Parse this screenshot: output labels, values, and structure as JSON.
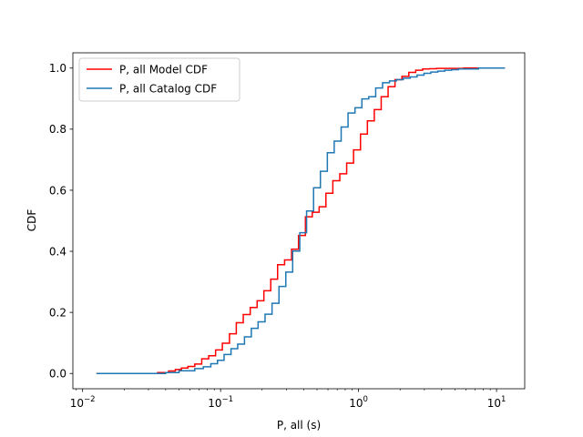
{
  "chart_data": {
    "type": "line",
    "step": true,
    "xlabel": "P, all (s)",
    "ylabel": "CDF",
    "xscale": "log",
    "xlim": [
      0.0085,
      16.0
    ],
    "ylim": [
      -0.05,
      1.05
    ],
    "grid": false,
    "legend_position": "top-left",
    "x_ticks": [
      {
        "value": 0.01,
        "base": "10",
        "exp": "−2"
      },
      {
        "value": 0.1,
        "base": "10",
        "exp": "−1"
      },
      {
        "value": 1,
        "base": "10",
        "exp": "0"
      },
      {
        "value": 10,
        "base": "10",
        "exp": "1"
      }
    ],
    "y_ticks": [
      {
        "value": 0.0,
        "label": "0.0"
      },
      {
        "value": 0.2,
        "label": "0.2"
      },
      {
        "value": 0.4,
        "label": "0.4"
      },
      {
        "value": 0.6,
        "label": "0.6"
      },
      {
        "value": 0.8,
        "label": "0.8"
      },
      {
        "value": 1.0,
        "label": "1.0"
      }
    ],
    "series": [
      {
        "name": "P, all Model CDF",
        "color": "#ff0000",
        "x": [
          0.0126,
          0.035,
          0.042,
          0.047,
          0.052,
          0.058,
          0.065,
          0.073,
          0.082,
          0.092,
          0.103,
          0.116,
          0.13,
          0.146,
          0.164,
          0.184,
          0.206,
          0.231,
          0.259,
          0.291,
          0.327,
          0.367,
          0.412,
          0.462,
          0.518,
          0.58,
          0.651,
          0.731,
          0.82,
          0.92,
          1.033,
          1.159,
          1.3,
          1.459,
          1.637,
          1.837,
          2.062,
          2.313,
          2.596,
          2.913,
          3.268,
          3.667,
          5.8,
          11.5
        ],
        "y": [
          0.0,
          0.003,
          0.008,
          0.013,
          0.018,
          0.023,
          0.031,
          0.048,
          0.058,
          0.077,
          0.099,
          0.13,
          0.166,
          0.193,
          0.216,
          0.238,
          0.271,
          0.309,
          0.356,
          0.372,
          0.407,
          0.452,
          0.513,
          0.528,
          0.546,
          0.59,
          0.631,
          0.654,
          0.689,
          0.732,
          0.784,
          0.827,
          0.864,
          0.906,
          0.939,
          0.962,
          0.973,
          0.986,
          0.993,
          0.997,
          0.998,
          0.999,
          1.0,
          1.0
        ]
      },
      {
        "name": "P, all Catalog CDF",
        "color": "#1f77b4",
        "x": [
          0.0126,
          0.04,
          0.05,
          0.065,
          0.075,
          0.085,
          0.095,
          0.106,
          0.119,
          0.133,
          0.149,
          0.167,
          0.187,
          0.21,
          0.236,
          0.265,
          0.297,
          0.333,
          0.375,
          0.42,
          0.472,
          0.529,
          0.594,
          0.666,
          0.748,
          0.839,
          0.942,
          1.057,
          1.186,
          1.331,
          1.493,
          1.676,
          1.88,
          2.11,
          2.367,
          2.656,
          2.98,
          3.344,
          3.752,
          4.21,
          4.724,
          5.3,
          7.4,
          11.5
        ],
        "y": [
          0.0,
          0.003,
          0.009,
          0.016,
          0.022,
          0.032,
          0.043,
          0.062,
          0.081,
          0.096,
          0.12,
          0.148,
          0.169,
          0.194,
          0.23,
          0.285,
          0.332,
          0.401,
          0.461,
          0.532,
          0.608,
          0.662,
          0.723,
          0.761,
          0.807,
          0.853,
          0.87,
          0.899,
          0.906,
          0.935,
          0.952,
          0.958,
          0.962,
          0.967,
          0.971,
          0.977,
          0.983,
          0.987,
          0.99,
          0.993,
          0.995,
          0.997,
          1.0,
          1.0
        ]
      }
    ]
  }
}
